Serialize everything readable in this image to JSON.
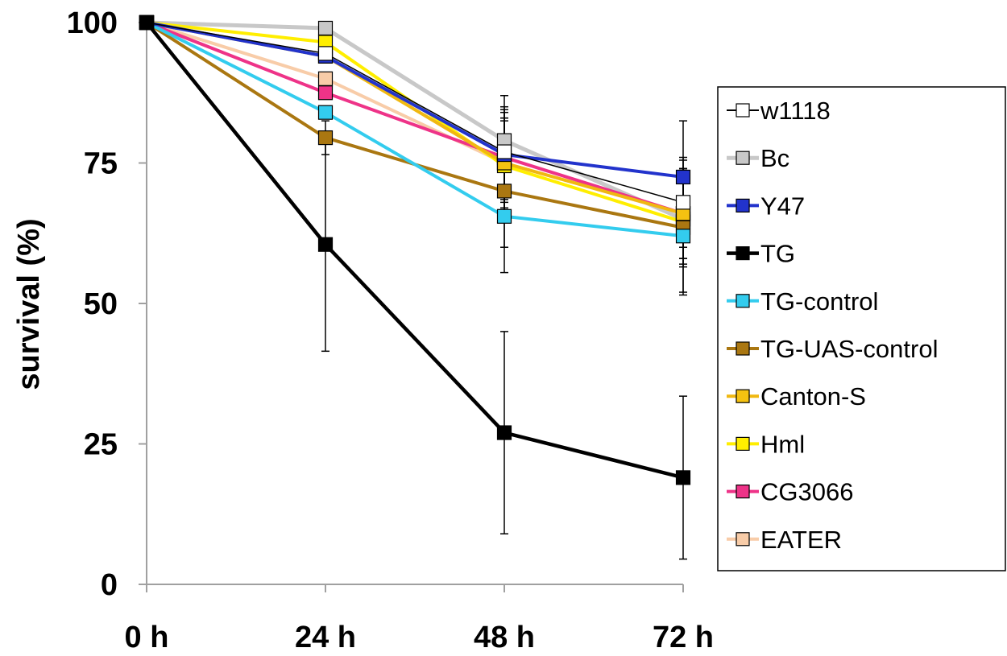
{
  "chart_data": {
    "type": "line",
    "ylabel": "survival (%)",
    "xlabel": "",
    "categories": [
      "0 h",
      "24 h",
      "48 h",
      "72 h"
    ],
    "ylim": [
      0,
      100
    ],
    "yticks": [
      "0",
      "25",
      "50",
      "75",
      "100"
    ],
    "ytick_values": [
      0,
      25,
      50,
      75,
      100
    ],
    "legend_position": "right",
    "series": [
      {
        "name": "w1118",
        "color": "#000000",
        "marker": "#ffffff",
        "line_width": 1.5,
        "values": [
          100,
          94.5,
          77,
          68
        ],
        "err": [
          0,
          0,
          8,
          8
        ]
      },
      {
        "name": "Bc",
        "color": "#c8c8c8",
        "marker": "#c8c8c8",
        "line_width": 5,
        "values": [
          100,
          99,
          79,
          65
        ],
        "err": [
          0,
          0,
          8,
          8
        ]
      },
      {
        "name": "Y47",
        "color": "#2233cc",
        "marker": "#2233cc",
        "line_width": 4,
        "values": [
          100,
          94,
          76.5,
          72.5
        ],
        "err": [
          0,
          0,
          8,
          10
        ]
      },
      {
        "name": "TG",
        "color": "#000000",
        "marker": "#000000",
        "line_width": 4.5,
        "values": [
          100,
          60.5,
          27,
          19
        ],
        "err": [
          0,
          19,
          18,
          14.5
        ]
      },
      {
        "name": "TG-control",
        "color": "#33ccee",
        "marker": "#33ccee",
        "line_width": 4,
        "values": [
          100,
          84,
          65.5,
          62
        ],
        "err": [
          0,
          0,
          10,
          10
        ]
      },
      {
        "name": "TG-UAS-control",
        "color": "#aa7711",
        "marker": "#aa7711",
        "line_width": 4,
        "values": [
          100,
          79.5,
          70,
          63.5
        ],
        "err": [
          0,
          3,
          10,
          12
        ]
      },
      {
        "name": "Canton-S",
        "color": "#f0b811",
        "marker": "#f5c211",
        "line_width": 4,
        "values": [
          100,
          94,
          75,
          66
        ],
        "err": [
          0,
          0,
          8,
          8
        ]
      },
      {
        "name": "Hml",
        "color": "#ffee00",
        "marker": "#ffee00",
        "line_width": 4,
        "values": [
          100,
          96.5,
          74.5,
          64.5
        ],
        "err": [
          0,
          0,
          8,
          8
        ]
      },
      {
        "name": "CG3066",
        "color": "#ee3388",
        "marker": "#ee3388",
        "line_width": 4,
        "values": [
          100,
          87.5,
          76,
          66
        ],
        "err": [
          0,
          0,
          8,
          8
        ]
      },
      {
        "name": "EATER",
        "color": "#f8cca8",
        "marker": "#f8cca8",
        "line_width": 4,
        "values": [
          100,
          90,
          75,
          66
        ],
        "err": [
          0,
          0,
          8,
          8
        ]
      }
    ]
  }
}
